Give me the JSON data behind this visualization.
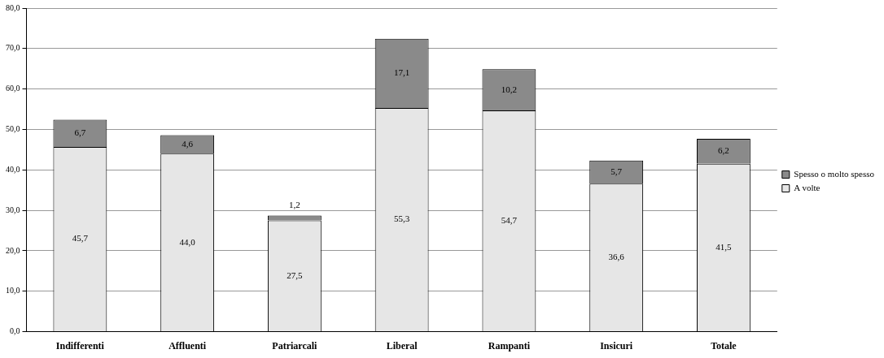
{
  "chart_data": {
    "type": "bar",
    "stacked": true,
    "categories": [
      "Indifferenti",
      "Affluenti",
      "Patriarcali",
      "Liberal",
      "Rampanti",
      "Insicuri",
      "Totale"
    ],
    "series": [
      {
        "name": "A volte",
        "color": "#e6e6e6",
        "values": [
          45.7,
          44.0,
          27.5,
          55.3,
          54.7,
          36.6,
          41.5
        ],
        "value_labels": [
          "45,7",
          "44,0",
          "27,5",
          "55,3",
          "54,7",
          "36,6",
          "41,5"
        ]
      },
      {
        "name": "Spesso o molto spesso",
        "color": "#8a8a8a",
        "values": [
          6.7,
          4.6,
          1.2,
          17.1,
          10.2,
          5.7,
          6.2
        ],
        "value_labels": [
          "6,7",
          "4,6",
          "1,2",
          "17,1",
          "10,2",
          "5,7",
          "6,2"
        ]
      }
    ],
    "ylim": [
      0,
      80
    ],
    "yticks": [
      {
        "value": 0,
        "label": "0,0"
      },
      {
        "value": 10,
        "label": "10,0"
      },
      {
        "value": 20,
        "label": "20,0"
      },
      {
        "value": 30,
        "label": "30,0"
      },
      {
        "value": 40,
        "label": "40,0"
      },
      {
        "value": 50,
        "label": "50,0"
      },
      {
        "value": 60,
        "label": "60,0"
      },
      {
        "value": 70,
        "label": "70,0"
      },
      {
        "value": 80,
        "label": "80,0"
      }
    ],
    "grid": "y",
    "legend": "right"
  }
}
